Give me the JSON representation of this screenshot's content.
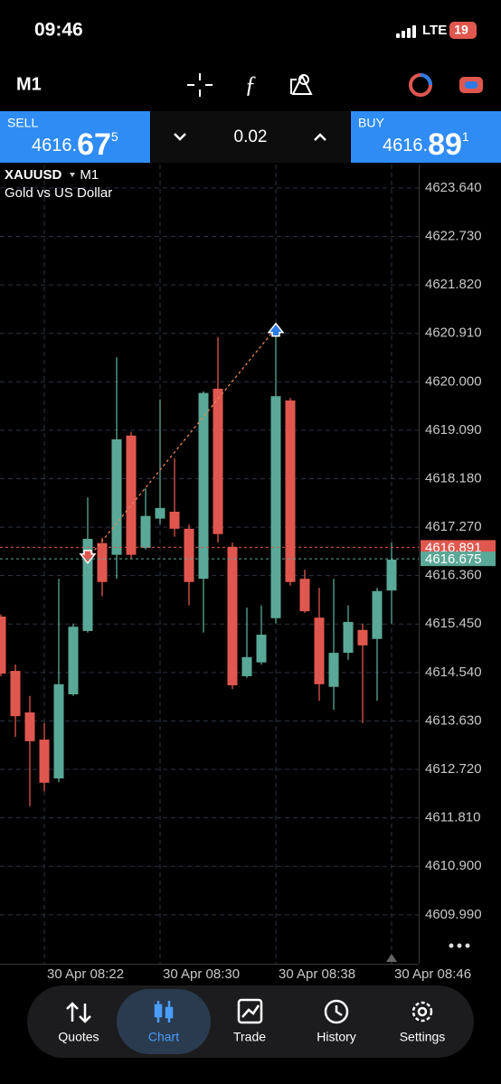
{
  "status_bar": {
    "time": "09:46",
    "network": "LTE",
    "battery": "19"
  },
  "toolbar": {
    "timeframe": "M1"
  },
  "trade_panel": {
    "sell": {
      "label": "SELL",
      "price_main": "4616.",
      "price_big": "67",
      "price_small": "5"
    },
    "volume": "0.02",
    "buy": {
      "label": "BUY",
      "price_main": "4616.",
      "price_big": "89",
      "price_small": "1"
    }
  },
  "chart_data": {
    "type": "candlestick",
    "symbol": "XAUUSD",
    "timeframe": "M1",
    "description": "Gold vs US Dollar",
    "categories": [
      "30 Apr 08:19",
      "30 Apr 08:20",
      "30 Apr 08:21",
      "30 Apr 08:22",
      "30 Apr 08:23",
      "30 Apr 08:24",
      "30 Apr 08:25",
      "30 Apr 08:26",
      "30 Apr 08:27",
      "30 Apr 08:28",
      "30 Apr 08:29",
      "30 Apr 08:30",
      "30 Apr 08:31",
      "30 Apr 08:32",
      "30 Apr 08:33",
      "30 Apr 08:34",
      "30 Apr 08:35",
      "30 Apr 08:36",
      "30 Apr 08:37",
      "30 Apr 08:38",
      "30 Apr 08:39",
      "30 Apr 08:40",
      "30 Apr 08:41",
      "30 Apr 08:42",
      "30 Apr 08:43",
      "30 Apr 08:44",
      "30 Apr 08:45",
      "30 Apr 08:46"
    ],
    "open": [
      4615.59,
      4614.57,
      4613.79,
      4613.28,
      4612.55,
      4614.13,
      4615.32,
      4616.97,
      4616.75,
      4618.99,
      4616.88,
      4617.43,
      4617.56,
      4617.24,
      4616.3,
      4619.87,
      4616.9,
      4614.47,
      4614.73,
      4615.56,
      4619.65,
      4616.3,
      4615.57,
      4614.27,
      4614.91,
      4615.34,
      4615.17,
      4616.08
    ],
    "high": [
      4615.63,
      4614.69,
      4614.1,
      4613.59,
      4616.3,
      4615.46,
      4617.83,
      4617.07,
      4620.46,
      4619.06,
      4618.0,
      4619.67,
      4618.56,
      4617.32,
      4619.82,
      4620.84,
      4616.98,
      4615.76,
      4615.8,
      4621.06,
      4619.7,
      4616.47,
      4616.13,
      4616.3,
      4615.8,
      4615.46,
      4616.13,
      4616.98
    ],
    "low": [
      4614.47,
      4613.33,
      4612.03,
      4612.31,
      4612.48,
      4614.1,
      4615.29,
      4615.97,
      4616.3,
      4616.68,
      4616.85,
      4617.32,
      4617.09,
      4615.8,
      4615.29,
      4616.98,
      4614.23,
      4614.44,
      4614.69,
      4615.46,
      4616.17,
      4615.66,
      4614.01,
      4613.84,
      4614.78,
      4613.59,
      4614.01,
      4615.46
    ],
    "close": [
      4614.52,
      4613.72,
      4613.25,
      4612.47,
      4614.32,
      4615.4,
      4617.05,
      4616.24,
      4618.92,
      4616.75,
      4617.48,
      4617.63,
      4617.24,
      4616.24,
      4619.79,
      4617.14,
      4614.3,
      4614.83,
      4615.25,
      4619.73,
      4616.24,
      4615.69,
      4614.32,
      4614.91,
      4615.49,
      4615.05,
      4616.07,
      4616.66
    ],
    "up_color": "#5aa897",
    "down_color": "#e0574f",
    "ylim": [
      4609.07,
      4624.08
    ],
    "yticks": [
      {
        "value": 4623.64,
        "label": "4623.640"
      },
      {
        "value": 4622.73,
        "label": "4622.730"
      },
      {
        "value": 4621.82,
        "label": "4621.820"
      },
      {
        "value": 4620.91,
        "label": "4620.910"
      },
      {
        "value": 4620.0,
        "label": "4620.000"
      },
      {
        "value": 4619.09,
        "label": "4619.090"
      },
      {
        "value": 4618.18,
        "label": "4618.180"
      },
      {
        "value": 4617.27,
        "label": "4617.270"
      },
      {
        "value": 4616.36,
        "label": "4616.360"
      },
      {
        "value": 4615.45,
        "label": "4615.450"
      },
      {
        "value": 4614.54,
        "label": "4614.540"
      },
      {
        "value": 4613.63,
        "label": "4613.630"
      },
      {
        "value": 4612.72,
        "label": "4612.720"
      },
      {
        "value": 4611.81,
        "label": "4611.810"
      },
      {
        "value": 4610.9,
        "label": "4610.900"
      },
      {
        "value": 4609.99,
        "label": "4609.990"
      }
    ],
    "xticks": [
      "30 Apr 08:22",
      "30 Apr 08:30",
      "30 Apr 08:38",
      "30 Apr 08:46"
    ],
    "grid": true,
    "ask": {
      "value": 4616.891,
      "label": "4616.891",
      "color": "#e0574f"
    },
    "bid": {
      "value": 4616.675,
      "label": "4616.675",
      "color": "#5aa897"
    },
    "trades": [
      {
        "category": "30 Apr 08:25",
        "price": 4616.68,
        "color": "#e0574f"
      },
      {
        "category": "30 Apr 08:38",
        "price": 4621.01,
        "color": "#2f7be6"
      }
    ]
  },
  "nav": {
    "items": [
      "Quotes",
      "Chart",
      "Trade",
      "History",
      "Settings"
    ],
    "active": 1
  }
}
